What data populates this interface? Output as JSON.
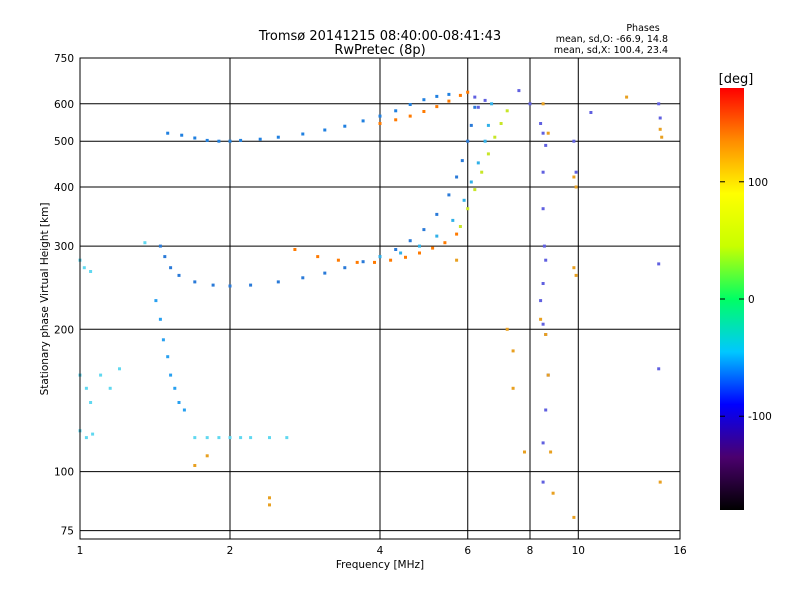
{
  "chart_data": {
    "type": "scatter",
    "title": "Tromsø 20141215 08:40:00-08:41:43",
    "subtitle": "RwPretec (8p)",
    "legend": {
      "title": "Phases",
      "lines": [
        "mean, sd,O: -66.9, 14.8",
        "mean, sd,X: 100.4, 23.4"
      ],
      "placement": "top-right"
    },
    "xlabel": "Frequency [MHz]",
    "ylabel": "Stationary phase Virtual Height [km]",
    "xscale": "log",
    "yscale": "log",
    "xlim": [
      1,
      16
    ],
    "ylim": [
      72,
      750
    ],
    "xticks": [
      1,
      2,
      4,
      6,
      8,
      10,
      16
    ],
    "yticks": [
      75,
      100,
      200,
      300,
      400,
      500,
      600,
      750
    ],
    "grid": true,
    "colorbar": {
      "label": "[deg]",
      "range": [
        -180,
        180
      ],
      "ticks": [
        100,
        0,
        -100
      ],
      "colors": [
        "#000000",
        "#4b006e",
        "#0000ff",
        "#00c8ff",
        "#00ff64",
        "#c8ff00",
        "#ffff00",
        "#ff8c00",
        "#ff0000"
      ]
    },
    "series": [
      {
        "color": "#2080e0",
        "points": [
          [
            1.5,
            520
          ],
          [
            1.6,
            515
          ],
          [
            1.7,
            508
          ],
          [
            1.8,
            502
          ],
          [
            1.9,
            500
          ],
          [
            2.0,
            500
          ],
          [
            2.1,
            502
          ],
          [
            2.3,
            505
          ],
          [
            2.5,
            510
          ],
          [
            2.8,
            518
          ],
          [
            3.1,
            528
          ],
          [
            3.4,
            538
          ],
          [
            3.7,
            552
          ],
          [
            4.0,
            565
          ],
          [
            4.3,
            580
          ],
          [
            4.6,
            598
          ],
          [
            4.9,
            612
          ],
          [
            5.2,
            622
          ],
          [
            5.5,
            628
          ]
        ]
      },
      {
        "color": "#ff7a00",
        "points": [
          [
            4.0,
            545
          ],
          [
            4.3,
            555
          ],
          [
            4.6,
            565
          ],
          [
            4.9,
            578
          ],
          [
            5.2,
            592
          ],
          [
            5.5,
            608
          ],
          [
            5.8,
            625
          ],
          [
            6.0,
            635
          ]
        ]
      },
      {
        "color": "#2a7ad8",
        "points": [
          [
            1.45,
            300
          ],
          [
            1.48,
            285
          ],
          [
            1.52,
            270
          ],
          [
            1.58,
            260
          ],
          [
            1.7,
            252
          ],
          [
            1.85,
            248
          ],
          [
            2.0,
            247
          ],
          [
            2.2,
            248
          ],
          [
            2.5,
            252
          ],
          [
            2.8,
            257
          ],
          [
            3.1,
            263
          ],
          [
            3.4,
            270
          ],
          [
            3.7,
            278
          ],
          [
            4.0,
            285
          ],
          [
            4.3,
            295
          ],
          [
            4.6,
            308
          ],
          [
            4.9,
            325
          ],
          [
            5.2,
            350
          ],
          [
            5.5,
            385
          ],
          [
            5.7,
            420
          ],
          [
            5.85,
            455
          ],
          [
            6.0,
            500
          ],
          [
            6.1,
            540
          ],
          [
            6.2,
            590
          ]
        ]
      },
      {
        "color": "#ff7a00",
        "points": [
          [
            2.7,
            295
          ],
          [
            3.0,
            285
          ],
          [
            3.3,
            280
          ],
          [
            3.6,
            277
          ],
          [
            3.9,
            277
          ],
          [
            4.2,
            280
          ],
          [
            4.5,
            284
          ],
          [
            4.8,
            290
          ],
          [
            5.1,
            297
          ],
          [
            5.4,
            305
          ],
          [
            5.7,
            318
          ]
        ]
      },
      {
        "color": "#30b0e8",
        "points": [
          [
            4.0,
            285
          ],
          [
            4.4,
            290
          ],
          [
            4.8,
            300
          ],
          [
            5.2,
            315
          ],
          [
            5.6,
            340
          ],
          [
            5.9,
            375
          ],
          [
            6.1,
            410
          ],
          [
            6.3,
            450
          ],
          [
            6.5,
            500
          ],
          [
            6.6,
            540
          ],
          [
            6.7,
            600
          ]
        ]
      },
      {
        "color": "#c8e628",
        "points": [
          [
            5.8,
            330
          ],
          [
            6.0,
            360
          ],
          [
            6.2,
            395
          ],
          [
            6.4,
            430
          ],
          [
            6.6,
            470
          ],
          [
            6.8,
            510
          ],
          [
            7.0,
            545
          ],
          [
            7.2,
            580
          ]
        ]
      },
      {
        "color": "#28a0f0",
        "points": [
          [
            1.42,
            230
          ],
          [
            1.45,
            210
          ],
          [
            1.47,
            190
          ],
          [
            1.5,
            175
          ],
          [
            1.52,
            160
          ],
          [
            1.55,
            150
          ],
          [
            1.58,
            140
          ],
          [
            1.62,
            135
          ]
        ]
      },
      {
        "color": "#60d8f0",
        "points": [
          [
            1.0,
            280
          ],
          [
            1.02,
            270
          ],
          [
            1.05,
            265
          ],
          [
            1.0,
            160
          ],
          [
            1.03,
            150
          ],
          [
            1.05,
            140
          ],
          [
            1.0,
            122
          ],
          [
            1.03,
            118
          ],
          [
            1.06,
            120
          ],
          [
            1.1,
            160
          ],
          [
            1.15,
            150
          ],
          [
            1.2,
            165
          ],
          [
            1.7,
            118
          ],
          [
            1.8,
            118
          ],
          [
            1.9,
            118
          ],
          [
            2.0,
            118
          ],
          [
            2.1,
            118
          ],
          [
            2.2,
            118
          ],
          [
            2.4,
            118
          ],
          [
            2.6,
            118
          ],
          [
            1.35,
            305
          ]
        ]
      },
      {
        "color": "#6060e0",
        "points": [
          [
            6.2,
            620
          ],
          [
            6.3,
            590
          ],
          [
            6.5,
            610
          ],
          [
            7.6,
            640
          ],
          [
            8.0,
            600
          ],
          [
            8.4,
            545
          ],
          [
            8.5,
            520
          ],
          [
            8.6,
            490
          ],
          [
            8.5,
            430
          ],
          [
            8.5,
            360
          ],
          [
            8.55,
            300
          ],
          [
            8.6,
            280
          ],
          [
            8.5,
            250
          ],
          [
            8.4,
            230
          ],
          [
            8.5,
            205
          ],
          [
            8.6,
            195
          ],
          [
            8.7,
            160
          ],
          [
            8.6,
            135
          ],
          [
            8.5,
            115
          ],
          [
            8.5,
            95
          ],
          [
            9.8,
            500
          ],
          [
            9.9,
            430
          ],
          [
            10.6,
            575
          ],
          [
            14.5,
            600
          ],
          [
            14.6,
            560
          ],
          [
            14.5,
            275
          ],
          [
            14.5,
            165
          ]
        ]
      },
      {
        "color": "#e8a020",
        "points": [
          [
            7.4,
            150
          ],
          [
            7.8,
            110
          ],
          [
            8.5,
            600
          ],
          [
            8.7,
            520
          ],
          [
            8.4,
            210
          ],
          [
            8.6,
            195
          ],
          [
            8.7,
            160
          ],
          [
            8.8,
            110
          ],
          [
            8.9,
            90
          ],
          [
            9.8,
            420
          ],
          [
            9.9,
            400
          ],
          [
            9.8,
            270
          ],
          [
            9.9,
            260
          ],
          [
            12.5,
            620
          ],
          [
            14.6,
            530
          ],
          [
            14.7,
            510
          ],
          [
            14.6,
            95
          ],
          [
            2.4,
            85
          ],
          [
            2.4,
            88
          ],
          [
            1.7,
            103
          ],
          [
            1.8,
            108
          ],
          [
            9.8,
            80
          ],
          [
            7.2,
            200
          ],
          [
            7.4,
            180
          ],
          [
            5.7,
            280
          ]
        ]
      }
    ]
  }
}
